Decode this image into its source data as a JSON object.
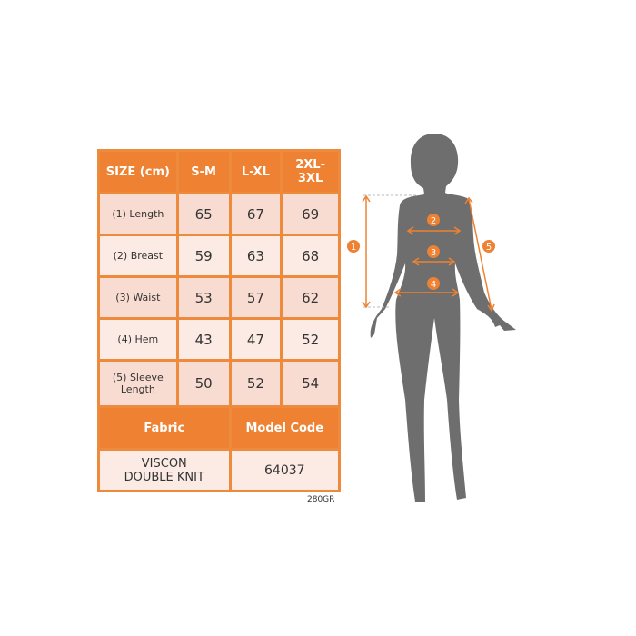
{
  "table": {
    "headers": [
      "SIZE (cm)",
      "S-M",
      "L-XL",
      "2XL-3XL"
    ],
    "rows": [
      {
        "label": "(1) Length",
        "values": [
          "65",
          "67",
          "69"
        ]
      },
      {
        "label": "(2) Breast",
        "values": [
          "59",
          "63",
          "68"
        ]
      },
      {
        "label": "(3) Waist",
        "values": [
          "53",
          "57",
          "62"
        ]
      },
      {
        "label": "(4) Hem",
        "values": [
          "43",
          "47",
          "52"
        ]
      },
      {
        "label": "(5) Sleeve Length",
        "values": [
          "50",
          "52",
          "54"
        ]
      }
    ],
    "fabric_header": "Fabric",
    "model_code_header": "Model Code",
    "fabric": "VISCON DOUBLE KNIT",
    "model_code": "64037"
  },
  "weight": "280GR",
  "figure": {
    "markers": [
      "1",
      "2",
      "3",
      "4",
      "5"
    ]
  },
  "colors": {
    "accent": "#ee8232",
    "silhouette": "#6e6e6e"
  }
}
